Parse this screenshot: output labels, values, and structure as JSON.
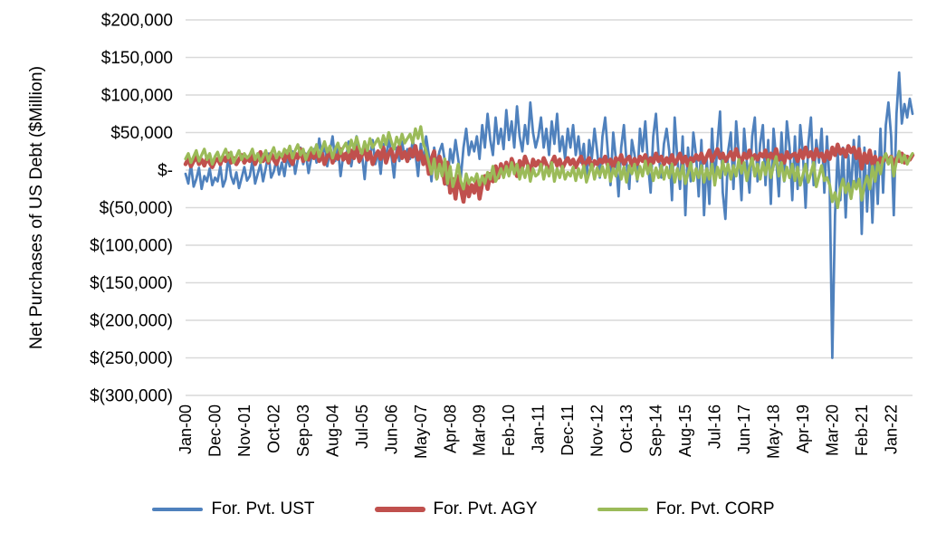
{
  "chart_data": {
    "type": "line",
    "title": "",
    "xlabel": "",
    "ylabel": "Net Purchases of US Debt ($Million)",
    "ylim": [
      -300000,
      200000
    ],
    "ytick_step": 50000,
    "ytick_labels": [
      "$200,000",
      "$150,000",
      "$100,000",
      "$50,000",
      "$-",
      "$(50,000)",
      "$(100,000)",
      "$(150,000)",
      "$(200,000)",
      "$(250,000)",
      "$(300,000)"
    ],
    "x_unit": "month",
    "x_start": "Jan-00",
    "x_end": "Sep-22",
    "xtick_every_n_months": 11,
    "xtick_labels": [
      "Jan-00",
      "Dec-00",
      "Nov-01",
      "Oct-02",
      "Sep-03",
      "Aug-04",
      "Jul-05",
      "Jun-06",
      "May-07",
      "Apr-08",
      "Mar-09",
      "Feb-10",
      "Jan-11",
      "Dec-11",
      "Nov-12",
      "Oct-13",
      "Sep-14",
      "Aug-15",
      "Jul-16",
      "Jun-17",
      "May-18",
      "Apr-19",
      "Mar-20",
      "Feb-21",
      "Jan-22"
    ],
    "grid": true,
    "gridline_color": "#d9d9d9",
    "legend_position": "bottom",
    "series": [
      {
        "name": "For. Pvt. UST",
        "color": "#4F81BD",
        "stroke_width": 2.75,
        "values": [
          -5000,
          -18000,
          8000,
          -22000,
          -12000,
          3000,
          -25000,
          -8000,
          -15000,
          2000,
          -20000,
          -10000,
          -15000,
          5000,
          -22000,
          -12000,
          18000,
          -8000,
          -18000,
          -3000,
          -24000,
          -10000,
          4000,
          -14000,
          -8000,
          12000,
          -18000,
          -5000,
          8000,
          -15000,
          3000,
          22000,
          -10000,
          -2000,
          14000,
          -6000,
          10000,
          -8000,
          18000,
          5000,
          25000,
          -5000,
          15000,
          30000,
          8000,
          22000,
          -4000,
          16000,
          28000,
          10000,
          42000,
          18000,
          35000,
          5000,
          25000,
          45000,
          12000,
          30000,
          -8000,
          20000,
          15000,
          38000,
          5000,
          28000,
          45000,
          10000,
          22000,
          -12000,
          30000,
          18000,
          40000,
          8000,
          25000,
          -5000,
          35000,
          15000,
          42000,
          20000,
          -10000,
          30000,
          12000,
          38000,
          18000,
          28000,
          15000,
          40000,
          22000,
          -8000,
          35000,
          10000,
          45000,
          20000,
          -15000,
          30000,
          8000,
          25000,
          35000,
          12000,
          -20000,
          28000,
          10000,
          40000,
          15000,
          -10000,
          30000,
          55000,
          20000,
          38000,
          25000,
          45000,
          15000,
          60000,
          30000,
          75000,
          40000,
          20000,
          70000,
          35000,
          55000,
          28000,
          80000,
          40000,
          65000,
          30000,
          85000,
          45000,
          25000,
          60000,
          35000,
          90000,
          50000,
          30000,
          45000,
          70000,
          30000,
          55000,
          20000,
          65000,
          35000,
          75000,
          25000,
          45000,
          15000,
          55000,
          30000,
          60000,
          20000,
          45000,
          10000,
          35000,
          -15000,
          40000,
          15000,
          55000,
          25000,
          -10000,
          45000,
          70000,
          25000,
          -20000,
          50000,
          15000,
          -35000,
          30000,
          60000,
          10000,
          -25000,
          40000,
          20000,
          -15000,
          55000,
          25000,
          65000,
          10000,
          -30000,
          45000,
          75000,
          20000,
          -10000,
          35000,
          55000,
          25000,
          -40000,
          70000,
          15000,
          -25000,
          45000,
          -60000,
          30000,
          -15000,
          50000,
          20000,
          -35000,
          40000,
          -60000,
          15000,
          -45000,
          55000,
          -20000,
          35000,
          78000,
          -30000,
          -65000,
          25000,
          50000,
          -25000,
          65000,
          20000,
          -40000,
          55000,
          10000,
          -30000,
          45000,
          70000,
          -15000,
          35000,
          60000,
          -20000,
          40000,
          -45000,
          55000,
          15000,
          -35000,
          50000,
          -15000,
          65000,
          30000,
          -40000,
          45000,
          -25000,
          60000,
          20000,
          -50000,
          35000,
          70000,
          -20000,
          40000,
          10000,
          55000,
          -30000,
          45000,
          -20000,
          -250000,
          -60000,
          25000,
          -40000,
          30000,
          -63000,
          20000,
          -30000,
          40000,
          -20000,
          45000,
          -85000,
          30000,
          -55000,
          20000,
          -70000,
          25000,
          -45000,
          55000,
          -30000,
          60000,
          90000,
          45000,
          -60000,
          75000,
          130000,
          62000,
          88000,
          70000,
          95000,
          75000
        ]
      },
      {
        "name": "For. Pvt. AGY",
        "color": "#C0504D",
        "stroke_width": 4.5,
        "values": [
          8000,
          15000,
          5000,
          12000,
          18000,
          8000,
          14000,
          6000,
          16000,
          10000,
          4000,
          12000,
          15000,
          8000,
          18000,
          12000,
          22000,
          10000,
          16000,
          8000,
          14000,
          20000,
          10000,
          16000,
          12000,
          20000,
          8000,
          16000,
          24000,
          12000,
          18000,
          10000,
          22000,
          14000,
          8000,
          18000,
          20000,
          12000,
          25000,
          15000,
          8000,
          22000,
          16000,
          28000,
          12000,
          20000,
          14000,
          24000,
          16000,
          26000,
          12000,
          22000,
          8000,
          18000,
          25000,
          10000,
          20000,
          15000,
          28000,
          14000,
          22000,
          10000,
          26000,
          16000,
          30000,
          12000,
          20000,
          28000,
          14000,
          24000,
          8000,
          18000,
          25000,
          15000,
          30000,
          10000,
          22000,
          28000,
          12000,
          20000,
          32000,
          16000,
          24000,
          12000,
          28000,
          18000,
          32000,
          14000,
          25000,
          8000,
          20000,
          -5000,
          15000,
          25000,
          -10000,
          18000,
          5000,
          -18000,
          10000,
          -30000,
          -12000,
          -38000,
          -8000,
          -25000,
          -42000,
          -15000,
          -35000,
          -20000,
          -30000,
          -12000,
          -38000,
          -18000,
          -8000,
          -25000,
          -5000,
          -15000,
          5000,
          -10000,
          8000,
          -5000,
          10000,
          -5000,
          15000,
          5000,
          -8000,
          12000,
          3000,
          18000,
          8000,
          -5000,
          14000,
          6000,
          12000,
          4000,
          16000,
          8000,
          -4000,
          10000,
          18000,
          6000,
          14000,
          2000,
          10000,
          16000,
          8000,
          14000,
          4000,
          12000,
          18000,
          6000,
          10000,
          16000,
          2000,
          12000,
          8000,
          14000,
          10000,
          18000,
          6000,
          14000,
          4000,
          16000,
          10000,
          20000,
          8000,
          14000,
          18000,
          6000,
          15000,
          8000,
          18000,
          12000,
          20000,
          6000,
          16000,
          10000,
          22000,
          12000,
          18000,
          8000,
          16000,
          10000,
          20000,
          8000,
          14000,
          22000,
          10000,
          18000,
          6000,
          16000,
          12000,
          20000,
          14000,
          22000,
          10000,
          18000,
          26000,
          12000,
          20000,
          28000,
          16000,
          22000,
          12000,
          18000,
          24000,
          14000,
          28000,
          18000,
          10000,
          22000,
          16000,
          26000,
          12000,
          20000,
          14000,
          22000,
          18000,
          26000,
          12000,
          22000,
          16000,
          28000,
          14000,
          20000,
          10000,
          24000,
          16000,
          20000,
          22000,
          12000,
          26000,
          16000,
          30000,
          18000,
          24000,
          14000,
          28000,
          18000,
          22000,
          12000,
          25000,
          15000,
          30000,
          20000,
          34000,
          22000,
          28000,
          18000,
          32000,
          24000,
          30000,
          16000,
          28000,
          2000,
          22000,
          10000,
          26000,
          8000,
          18000,
          6000,
          16000,
          12000,
          20000,
          10000,
          18000,
          8000,
          16000,
          12000,
          22000,
          10000,
          18000,
          14000,
          20000
        ]
      },
      {
        "name": "For. Pvt. CORP",
        "color": "#9BBB59",
        "stroke_width": 3.25,
        "values": [
          15000,
          22000,
          10000,
          18000,
          26000,
          12000,
          20000,
          28000,
          14000,
          22000,
          8000,
          18000,
          24000,
          12000,
          20000,
          28000,
          16000,
          24000,
          10000,
          18000,
          26000,
          14000,
          22000,
          16000,
          20000,
          28000,
          14000,
          22000,
          10000,
          18000,
          26000,
          12000,
          22000,
          30000,
          16000,
          24000,
          18000,
          28000,
          22000,
          32000,
          16000,
          26000,
          34000,
          20000,
          28000,
          14000,
          24000,
          30000,
          22000,
          34000,
          18000,
          28000,
          38000,
          24000,
          32000,
          16000,
          28000,
          36000,
          22000,
          30000,
          36000,
          24000,
          40000,
          28000,
          44000,
          30000,
          22000,
          38000,
          26000,
          42000,
          30000,
          36000,
          42000,
          30000,
          46000,
          34000,
          50000,
          38000,
          28000,
          44000,
          34000,
          48000,
          36000,
          42000,
          48000,
          36000,
          55000,
          42000,
          58000,
          35000,
          25000,
          10000,
          -5000,
          15000,
          -12000,
          8000,
          -8000,
          15000,
          -18000,
          5000,
          -22000,
          -10000,
          8000,
          -15000,
          -25000,
          -5000,
          -18000,
          -10000,
          -15000,
          -5000,
          -20000,
          -8000,
          -18000,
          -3000,
          -12000,
          5000,
          -15000,
          -8000,
          2000,
          -10000,
          5000,
          -8000,
          10000,
          -5000,
          8000,
          -12000,
          3000,
          -10000,
          6000,
          -15000,
          2000,
          -8000,
          -5000,
          8000,
          -12000,
          4000,
          -8000,
          10000,
          -15000,
          2000,
          -10000,
          5000,
          -12000,
          -3000,
          -8000,
          4000,
          -14000,
          2000,
          -10000,
          6000,
          -16000,
          -4000,
          8000,
          -12000,
          3000,
          -8000,
          5000,
          -10000,
          8000,
          -15000,
          2000,
          -8000,
          10000,
          -12000,
          4000,
          -16000,
          6000,
          -5000,
          8000,
          -12000,
          5000,
          -8000,
          12000,
          -5000,
          8000,
          -14000,
          3000,
          -10000,
          6000,
          -12000,
          4000,
          -10000,
          8000,
          -16000,
          2000,
          -12000,
          6000,
          -18000,
          -5000,
          10000,
          -14000,
          2000,
          -10000,
          6000,
          -16000,
          2000,
          -12000,
          8000,
          -20000,
          4000,
          -10000,
          12000,
          -6000,
          8000,
          -12000,
          6000,
          -8000,
          14000,
          -4000,
          10000,
          -14000,
          4000,
          16000,
          -8000,
          8000,
          -12000,
          10000,
          -6000,
          14000,
          -10000,
          6000,
          18000,
          -8000,
          10000,
          -14000,
          4000,
          -10000,
          8000,
          -14000,
          4000,
          -20000,
          -6000,
          8000,
          -16000,
          -4000,
          10000,
          -22000,
          -8000,
          6000,
          -14000,
          -10000,
          -20000,
          -42000,
          -30000,
          -50000,
          -25000,
          -12000,
          -30000,
          -18000,
          -38000,
          -15000,
          -25000,
          -12000,
          -40000,
          -20000,
          -8000,
          -25000,
          5000,
          -15000,
          10000,
          -5000,
          15000,
          22000,
          8000,
          18000,
          -8000,
          12000,
          25000,
          10000,
          20000,
          8000,
          16000,
          22000
        ]
      }
    ]
  }
}
